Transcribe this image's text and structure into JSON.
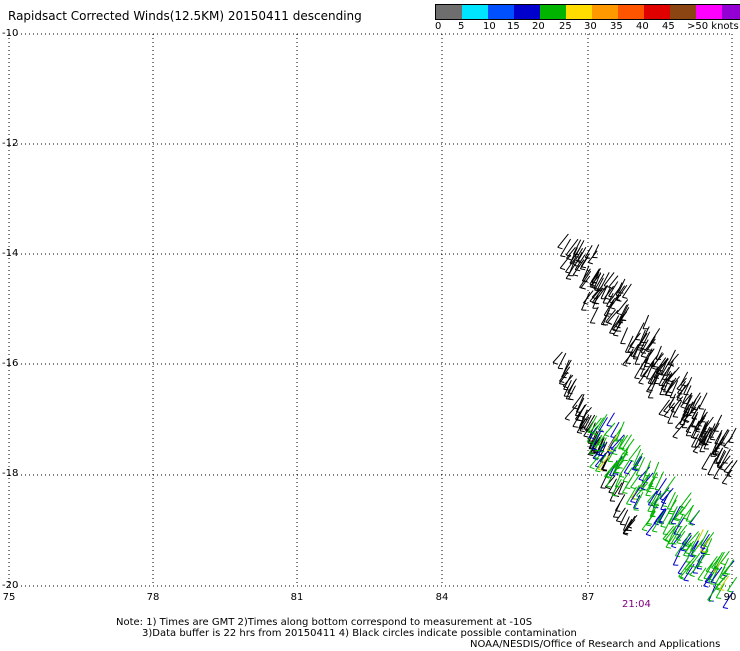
{
  "header": {
    "title": "Rapidsact Corrected Winds(12.5KM) 20150411 descending"
  },
  "scale": {
    "segments": [
      {
        "color": "#6e6e6e"
      },
      {
        "color": "#00e5ff"
      },
      {
        "color": "#0050ff"
      },
      {
        "color": "#0000cc"
      },
      {
        "color": "#00b400"
      },
      {
        "color": "#ffdd00"
      },
      {
        "color": "#ff9900"
      },
      {
        "color": "#ff5500"
      },
      {
        "color": "#e00000"
      },
      {
        "color": "#8b4513"
      },
      {
        "color": "#ff00ff"
      },
      {
        "color": "#9400d3"
      },
      {
        "color": "#4b0082"
      }
    ],
    "labels": [
      "0",
      "5",
      "10",
      "15",
      "20",
      "25",
      "30",
      "35",
      "40",
      "45",
      ">50 knots"
    ]
  },
  "map": {
    "lon_range": [
      75,
      90
    ],
    "lat_range": [
      -20,
      -10
    ],
    "lon_ticks": [
      "75",
      "78",
      "81",
      "84",
      "87",
      "90"
    ],
    "lat_ticks": [
      "-10",
      "-12",
      "-14",
      "-16",
      "-18",
      "-20"
    ],
    "time_label": "21:04",
    "time_color": "#800080"
  },
  "notes": {
    "line1": "Note: 1) Times are GMT 2)Times along bottom correspond to measurement at -10S",
    "line2": "3)Data buffer is 22 hrs from 20150411 4) Black circles indicate possible contamination",
    "line3": "NOAA/NESDIS/Office of Research and Applications"
  }
}
